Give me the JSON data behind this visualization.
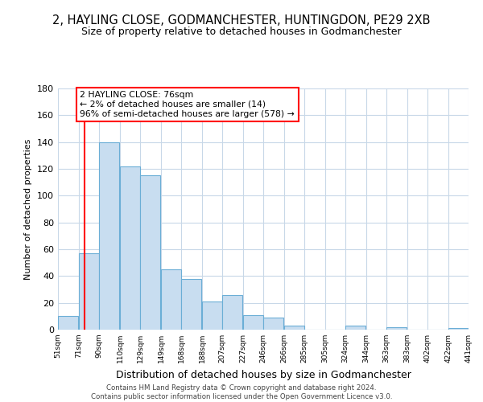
{
  "title": "2, HAYLING CLOSE, GODMANCHESTER, HUNTINGDON, PE29 2XB",
  "subtitle": "Size of property relative to detached houses in Godmanchester",
  "xlabel": "Distribution of detached houses by size in Godmanchester",
  "ylabel": "Number of detached properties",
  "bar_left_edges": [
    51,
    71,
    90,
    110,
    129,
    149,
    168,
    188,
    207,
    227,
    246,
    266,
    285,
    305,
    324,
    344,
    363,
    383,
    402,
    422
  ],
  "bar_heights": [
    10,
    57,
    140,
    122,
    115,
    45,
    38,
    21,
    26,
    11,
    9,
    3,
    0,
    0,
    3,
    0,
    2,
    0,
    0,
    1
  ],
  "bar_widths": [
    19,
    19,
    19,
    19,
    19,
    19,
    19,
    19,
    19,
    19,
    19,
    19,
    19,
    19,
    19,
    19,
    19,
    19,
    19,
    19
  ],
  "bar_color": "#c8ddf0",
  "bar_edgecolor": "#6baed6",
  "tick_labels": [
    "51sqm",
    "71sqm",
    "90sqm",
    "110sqm",
    "129sqm",
    "149sqm",
    "168sqm",
    "188sqm",
    "207sqm",
    "227sqm",
    "246sqm",
    "266sqm",
    "285sqm",
    "305sqm",
    "324sqm",
    "344sqm",
    "363sqm",
    "383sqm",
    "402sqm",
    "422sqm",
    "441sqm"
  ],
  "ylim": [
    0,
    180
  ],
  "yticks": [
    0,
    20,
    40,
    60,
    80,
    100,
    120,
    140,
    160,
    180
  ],
  "red_line_x": 76,
  "annotation_title": "2 HAYLING CLOSE: 76sqm",
  "annotation_line1": "← 2% of detached houses are smaller (14)",
  "annotation_line2": "96% of semi-detached houses are larger (578) →",
  "footer_line1": "Contains HM Land Registry data © Crown copyright and database right 2024.",
  "footer_line2": "Contains public sector information licensed under the Open Government Licence v3.0.",
  "background_color": "#ffffff",
  "grid_color": "#c8d8e8"
}
